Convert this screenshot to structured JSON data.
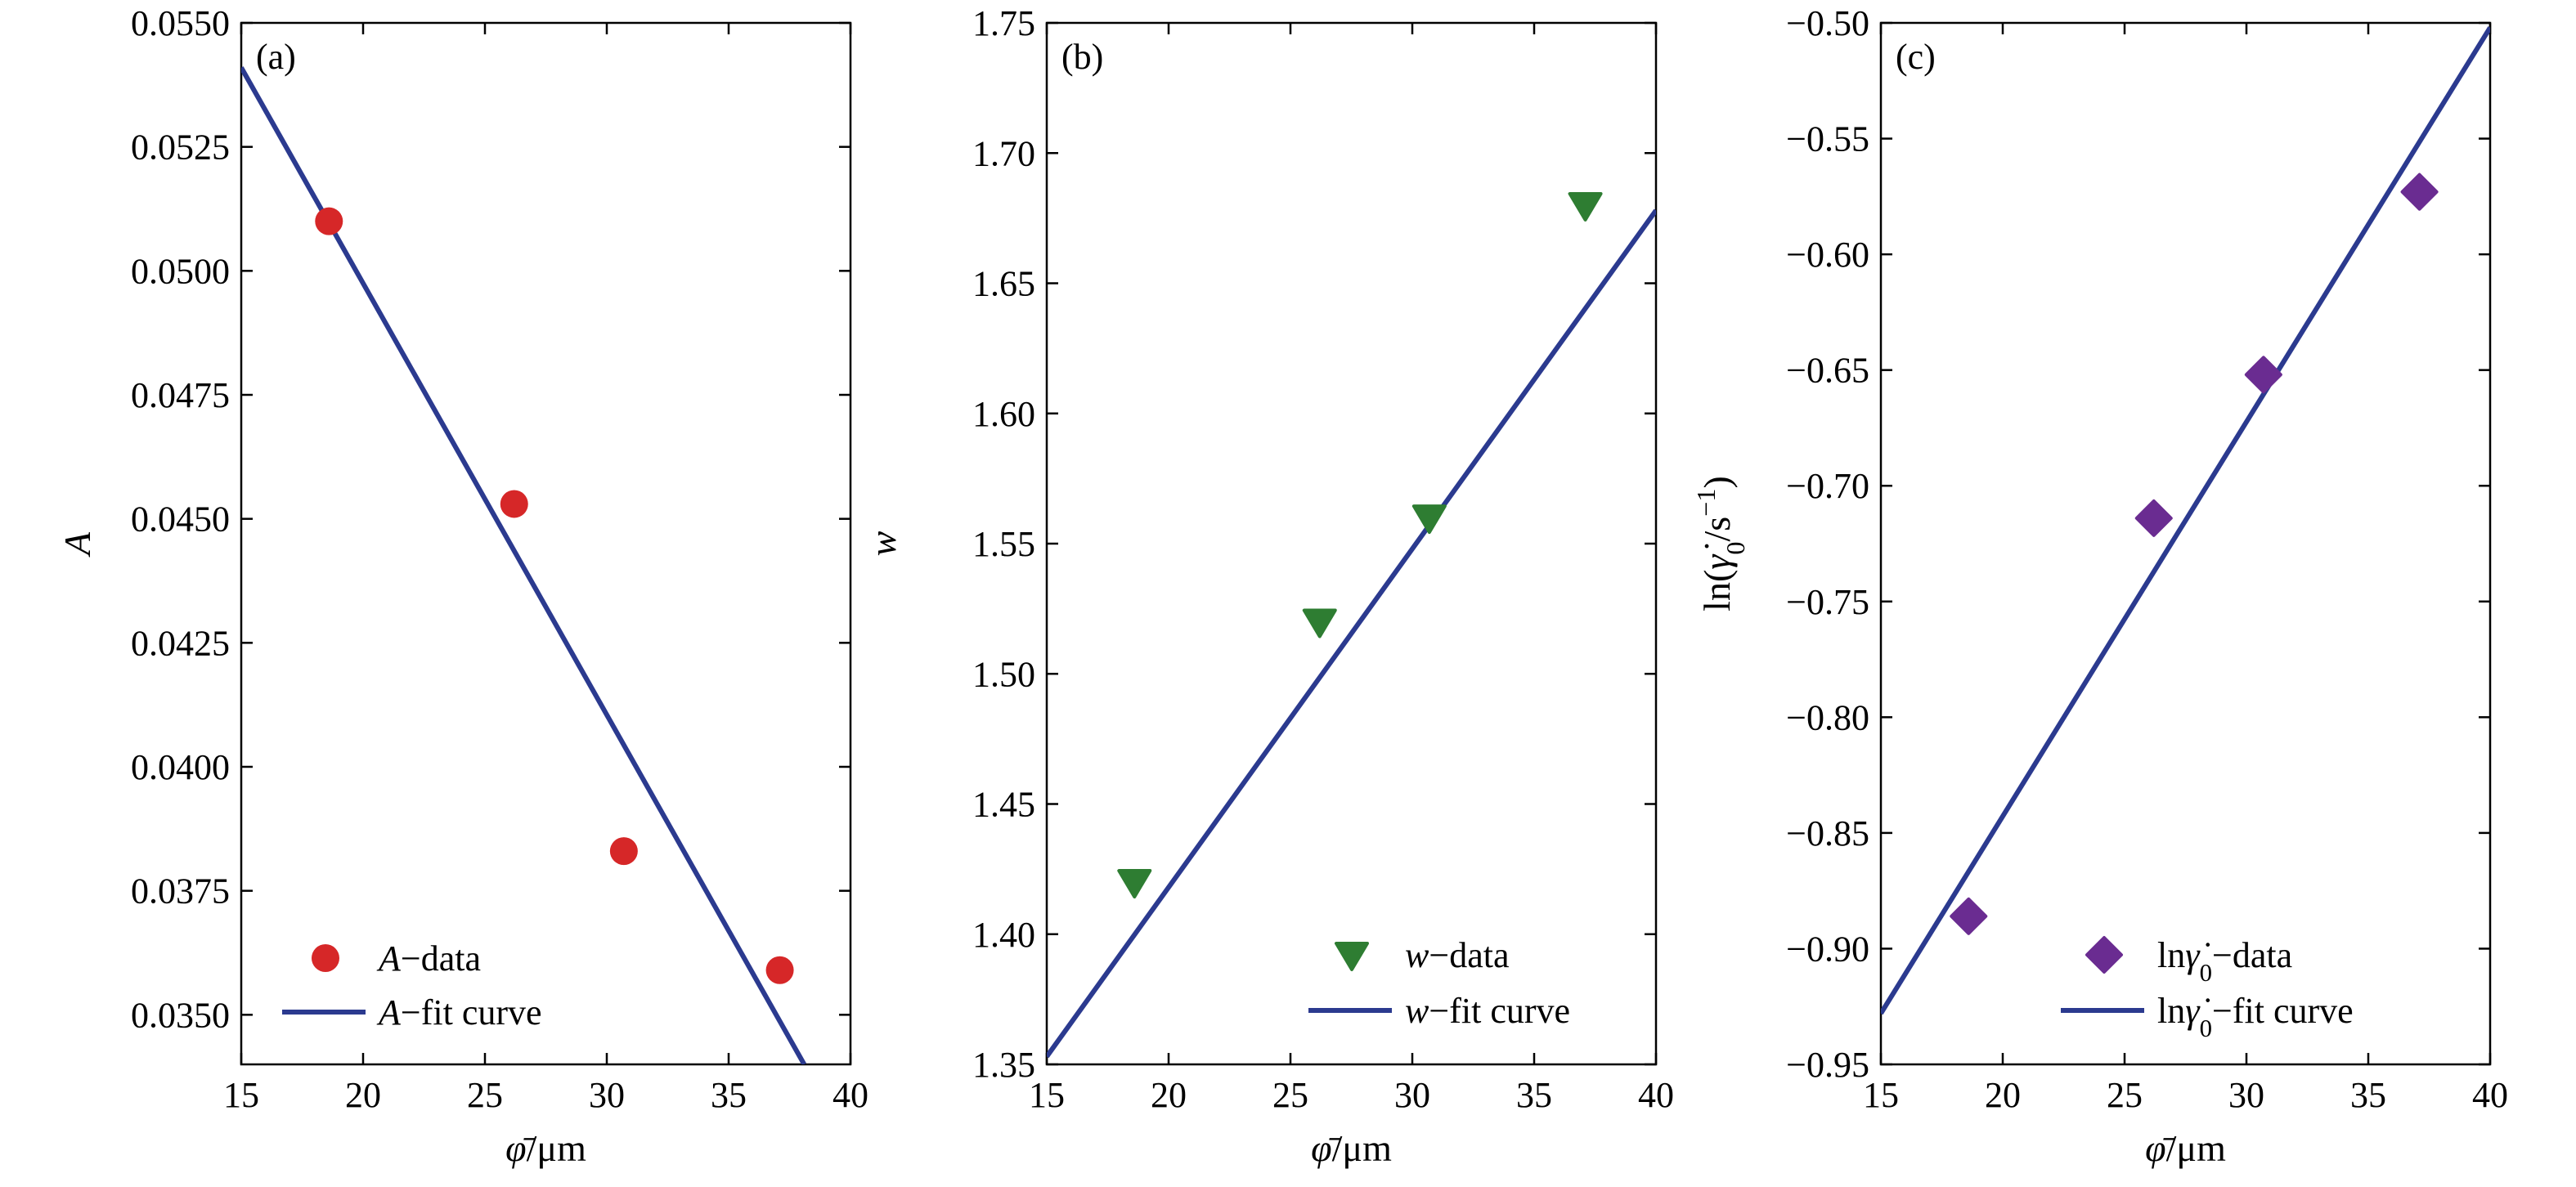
{
  "colors": {
    "fit_line": "#2b3a8f",
    "a_marker": "#d62728",
    "w_marker": "#2e7d32",
    "lng_marker": "#6a2c91",
    "axis": "#000000"
  },
  "chart_data": [
    {
      "type": "scatter",
      "panel_label": "(a)",
      "xlabel": "φ̄/μm",
      "ylabel": "A",
      "xlim": [
        15,
        40
      ],
      "ylim": [
        0.034,
        0.055
      ],
      "xticks": [
        15,
        20,
        25,
        30,
        35,
        40
      ],
      "xtick_labels": [
        "15",
        "20",
        "25",
        "30",
        "35",
        "40"
      ],
      "yticks": [
        0.035,
        0.0375,
        0.04,
        0.0425,
        0.045,
        0.0475,
        0.05,
        0.0525,
        0.055
      ],
      "ytick_labels": [
        "0.0350",
        "0.0375",
        "0.0400",
        "0.0425",
        "0.0450",
        "0.0475",
        "0.0500",
        "0.0525",
        "0.0550"
      ],
      "grid": false,
      "legend_position": "bottom-left",
      "series": [
        {
          "name": "A−data",
          "kind": "points",
          "marker": "circle",
          "color": "#d62728",
          "x": [
            18.6,
            26.2,
            30.7,
            37.1
          ],
          "y": [
            0.051,
            0.0453,
            0.0383,
            0.0359
          ]
        },
        {
          "name": "A−fit curve",
          "kind": "line",
          "color": "#2b3a8f",
          "x": [
            15,
            38.1
          ],
          "y": [
            0.0541,
            0.034
          ]
        }
      ]
    },
    {
      "type": "scatter",
      "panel_label": "(b)",
      "xlabel": "φ̄/μm",
      "ylabel": "w",
      "xlim": [
        15,
        40
      ],
      "ylim": [
        1.35,
        1.75
      ],
      "xticks": [
        15,
        20,
        25,
        30,
        35,
        40
      ],
      "xtick_labels": [
        "15",
        "20",
        "25",
        "30",
        "35",
        "40"
      ],
      "yticks": [
        1.35,
        1.4,
        1.45,
        1.5,
        1.55,
        1.6,
        1.65,
        1.7,
        1.75
      ],
      "ytick_labels": [
        "1.35",
        "1.40",
        "1.45",
        "1.50",
        "1.55",
        "1.60",
        "1.65",
        "1.70",
        "1.75"
      ],
      "grid": false,
      "legend_position": "bottom-right",
      "series": [
        {
          "name": "w−data",
          "kind": "points",
          "marker": "triangle-down",
          "color": "#2e7d32",
          "x": [
            18.6,
            26.2,
            30.7,
            37.1
          ],
          "y": [
            1.42,
            1.52,
            1.56,
            1.68
          ]
        },
        {
          "name": "w−fit curve",
          "kind": "line",
          "color": "#2b3a8f",
          "x": [
            15,
            40
          ],
          "y": [
            1.353,
            1.678
          ]
        }
      ]
    },
    {
      "type": "scatter",
      "panel_label": "(c)",
      "xlabel": "φ̄/μm",
      "ylabel": "ln(γ̇0/s−1)",
      "xlim": [
        15,
        40
      ],
      "ylim": [
        -0.95,
        -0.5
      ],
      "xticks": [
        15,
        20,
        25,
        30,
        35,
        40
      ],
      "xtick_labels": [
        "15",
        "20",
        "25",
        "30",
        "35",
        "40"
      ],
      "yticks": [
        -0.95,
        -0.9,
        -0.85,
        -0.8,
        -0.75,
        -0.7,
        -0.65,
        -0.6,
        -0.55,
        -0.5
      ],
      "ytick_labels": [
        "−0.95",
        "−0.90",
        "−0.85",
        "−0.80",
        "−0.75",
        "−0.70",
        "−0.65",
        "−0.60",
        "−0.55",
        "−0.50"
      ],
      "grid": false,
      "legend_position": "bottom-right",
      "series": [
        {
          "name": "lnγ̇0−data",
          "kind": "points",
          "marker": "diamond",
          "color": "#6a2c91",
          "x": [
            18.6,
            26.2,
            30.7,
            37.1
          ],
          "y": [
            -0.886,
            -0.714,
            -0.652,
            -0.573
          ]
        },
        {
          "name": "lnγ̇0−fit curve",
          "kind": "line",
          "color": "#2b3a8f",
          "x": [
            15,
            40
          ],
          "y": [
            -0.928,
            -0.502
          ]
        }
      ]
    }
  ]
}
